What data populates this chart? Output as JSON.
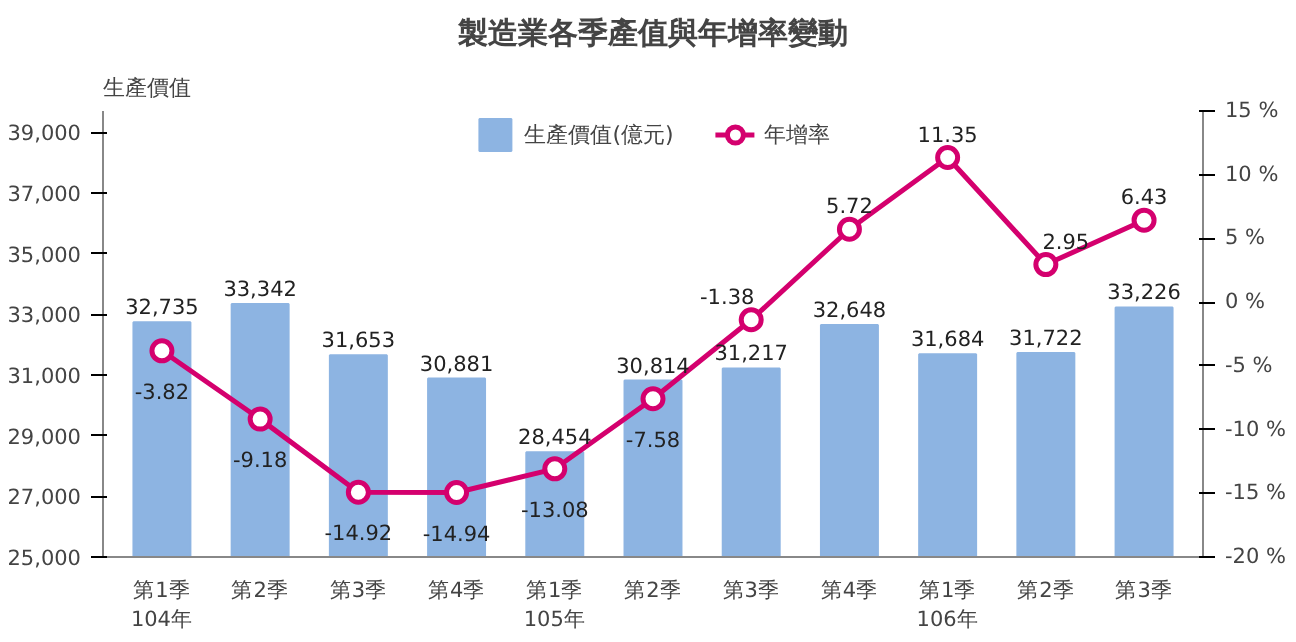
{
  "chart_data": {
    "type": "bar",
    "title": "製造業各季產值與年增率變動",
    "ylabel": "生產價值",
    "categories": [
      "第1季\n104年",
      "第2季",
      "第3季",
      "第4季",
      "第1季\n105年",
      "第2季",
      "第3季",
      "第4季",
      "第1季\n106年",
      "第2季",
      "第3季"
    ],
    "series": [
      {
        "name": "生產價值(億元)",
        "color": "#8db4e2",
        "values": [
          32735,
          33342,
          31653,
          30881,
          28454,
          30814,
          31217,
          32648,
          31684,
          31722,
          33226
        ],
        "value_labels": [
          "32,735",
          "33,342",
          "31,653",
          "30,881",
          "28,454",
          "30,814",
          "31,217",
          "32,648",
          "31,684",
          "31,722",
          "33,226"
        ]
      },
      {
        "name": "年增率",
        "type": "line",
        "axis": "y2",
        "color": "#d4006e",
        "marker": "circle",
        "values": [
          -3.82,
          -9.18,
          -14.92,
          -14.94,
          -13.08,
          -7.58,
          -1.38,
          5.72,
          11.35,
          2.95,
          6.43
        ],
        "value_labels": [
          "-3.82",
          "-9.18",
          "-14.92",
          "-14.94",
          "-13.08",
          "-7.58",
          "-1.38",
          "5.72",
          "11.35",
          "2.95",
          "6.43"
        ]
      }
    ],
    "ylim": [
      25000,
      39700
    ],
    "yticks": [
      {
        "value": 25000,
        "label": "25,000"
      },
      {
        "value": 27000,
        "label": "27,000"
      },
      {
        "value": 29000,
        "label": "29,000"
      },
      {
        "value": 31000,
        "label": "31,000"
      },
      {
        "value": 33000,
        "label": "33,000"
      },
      {
        "value": 35000,
        "label": "35,000"
      },
      {
        "value": 37000,
        "label": "37,000"
      },
      {
        "value": 39000,
        "label": "39,000"
      }
    ],
    "y2lim": [
      -20,
      15
    ],
    "y2ticks": [
      {
        "value": -20,
        "label": "-20 %"
      },
      {
        "value": -15,
        "label": "-15 %"
      },
      {
        "value": -10,
        "label": "-10 %"
      },
      {
        "value": -5,
        "label": "-5 %"
      },
      {
        "value": 0,
        "label": "0 %"
      },
      {
        "value": 5,
        "label": "5 %"
      },
      {
        "value": 10,
        "label": "10 %"
      },
      {
        "value": 15,
        "label": "15 %"
      }
    ],
    "legend": "top",
    "grid": false
  }
}
